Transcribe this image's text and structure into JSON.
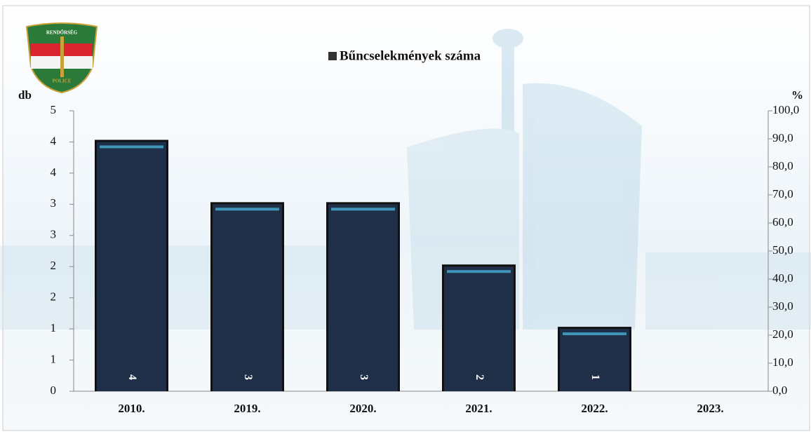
{
  "chart_data": {
    "type": "bar",
    "annotations": [
      "RENDŐRSÉG",
      "POLICE"
    ],
    "ylabel": "db",
    "y2label": "%",
    "categories": [
      "2010.",
      "2019.",
      "2020.",
      "2021.",
      "2022.",
      "2023."
    ],
    "series": [
      {
        "name": "Bűncselekmények száma",
        "color": "#1e2f47",
        "values": [
          4,
          3,
          3,
          2,
          1,
          null
        ]
      }
    ],
    "ylim": [
      0,
      4.5
    ],
    "yticks": [
      0,
      {
        "value": 0.5,
        "label": "1"
      },
      1,
      {
        "value": 1.5,
        "label": "2"
      },
      2,
      {
        "value": 2.5,
        "label": "3"
      },
      3,
      {
        "value": 3.5,
        "label": "4"
      },
      4,
      {
        "value": 4.5,
        "label": "5"
      }
    ],
    "y2lim": [
      0,
      100
    ],
    "y2ticks": [
      {
        "value": 0,
        "label": "0,0"
      },
      {
        "value": 10,
        "label": "10,0"
      },
      {
        "value": 20,
        "label": "20,0"
      },
      {
        "value": 30,
        "label": "30,0"
      },
      {
        "value": 40,
        "label": "40,0"
      },
      {
        "value": 50,
        "label": "50,0"
      },
      {
        "value": 60,
        "label": "60,0"
      },
      {
        "value": 70,
        "label": "70,0"
      },
      {
        "value": 80,
        "label": "80,0"
      },
      {
        "value": 90,
        "label": "90,0"
      },
      {
        "value": 100,
        "label": "100,0"
      }
    ],
    "legend": "top",
    "grid": false
  }
}
